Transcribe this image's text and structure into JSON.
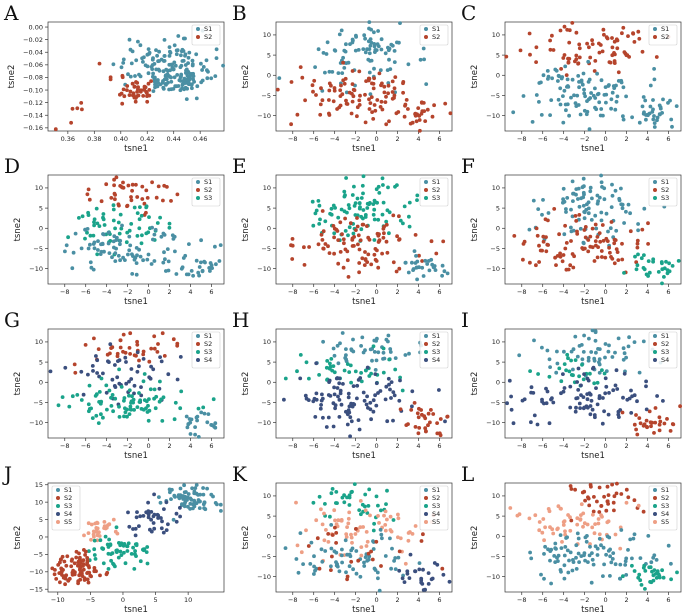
{
  "colors": {
    "S1": "#4a8fa3",
    "S2": "#b5442c",
    "S3": "#1aa38a",
    "S4": "#3b4f7e",
    "S5": "#ee9f85"
  },
  "chart_data": [
    {
      "letter": "A",
      "type": "scatter",
      "xlabel": "tsne1",
      "ylabel": "tsne2",
      "xlim": [
        0.345,
        0.478
      ],
      "ylim": [
        -0.165,
        0.008
      ],
      "xticks": [
        0.36,
        0.38,
        0.4,
        0.42,
        0.44,
        0.46
      ],
      "xtick_labels": [
        "0.36",
        "0.38",
        "0.40",
        "0.42",
        "0.44",
        "0.46"
      ],
      "yticks": [
        0.0,
        -0.02,
        -0.04,
        -0.06,
        -0.08,
        -0.1,
        -0.12,
        -0.14,
        -0.16
      ],
      "ytick_labels": [
        "0.00",
        "−0.02",
        "−0.04",
        "−0.06",
        "−0.08",
        "−0.10",
        "−0.12",
        "−0.14",
        "−0.16"
      ],
      "legend": [
        "S1",
        "S2"
      ],
      "clusters": [
        {
          "group": "S1",
          "n": 150,
          "cx": 0.433,
          "cy": -0.062,
          "sx": 0.017,
          "sy": 0.021
        },
        {
          "group": "S1",
          "n": 40,
          "cx": 0.447,
          "cy": -0.088,
          "sx": 0.007,
          "sy": 0.007
        },
        {
          "group": "S2",
          "n": 40,
          "cx": 0.415,
          "cy": -0.103,
          "sx": 0.008,
          "sy": 0.008
        },
        {
          "group": "S2",
          "n": 6,
          "cx": 0.362,
          "cy": -0.135,
          "sx": 0.01,
          "sy": 0.015
        },
        {
          "group": "S2",
          "n": 5,
          "cx": 0.395,
          "cy": -0.07,
          "sx": 0.01,
          "sy": 0.02
        }
      ]
    },
    {
      "letter": "B",
      "type": "scatter",
      "xlabel": "tsne1",
      "ylabel": "tsne2",
      "xlim": [
        -9.6,
        7.2
      ],
      "ylim": [
        -13.8,
        13.2
      ],
      "xticks": [
        -8,
        -6,
        -4,
        -2,
        0,
        2,
        4,
        6
      ],
      "xtick_labels": [
        "−8",
        "−6",
        "−4",
        "−2",
        "0",
        "2",
        "4",
        "6"
      ],
      "yticks": [
        10,
        5,
        0,
        -5,
        -10
      ],
      "ytick_labels": [
        "10",
        "5",
        "0",
        "−5",
        "−10"
      ],
      "legend": [
        "S1",
        "S2"
      ],
      "clusters": [
        {
          "group": "S1",
          "n": 95,
          "cx": -1.5,
          "cy": 5,
          "sx": 2.5,
          "sy": 4
        },
        {
          "group": "S2",
          "n": 100,
          "cx": -2,
          "cy": -4.5,
          "sx": 3.2,
          "sy": 3.5
        },
        {
          "group": "S2",
          "n": 30,
          "cx": 4.5,
          "cy": -9.5,
          "sx": 1.3,
          "sy": 1.8
        }
      ]
    },
    {
      "letter": "C",
      "type": "scatter",
      "xlabel": "tsne1",
      "ylabel": "tsne2",
      "xlim": [
        -9.6,
        7.2
      ],
      "ylim": [
        -13.8,
        13.2
      ],
      "xticks": [
        -8,
        -6,
        -4,
        -2,
        0,
        2,
        4,
        6
      ],
      "xtick_labels": [
        "−8",
        "−6",
        "−4",
        "−2",
        "0",
        "2",
        "4",
        "6"
      ],
      "yticks": [
        10,
        5,
        0,
        -5,
        -10
      ],
      "ytick_labels": [
        "10",
        "5",
        "0",
        "−5",
        "−10"
      ],
      "legend": [
        "S1",
        "S2"
      ],
      "clusters": [
        {
          "group": "S2",
          "n": 80,
          "cx": -1.5,
          "cy": 7,
          "sx": 2.8,
          "sy": 3.2
        },
        {
          "group": "S1",
          "n": 110,
          "cx": -2,
          "cy": -4,
          "sx": 3.2,
          "sy": 3.5
        },
        {
          "group": "S1",
          "n": 30,
          "cx": 4.5,
          "cy": -9.5,
          "sx": 1.3,
          "sy": 1.8
        }
      ]
    },
    {
      "letter": "D",
      "type": "scatter",
      "xlabel": "tsne1",
      "ylabel": "tsne2",
      "xlim": [
        -9.6,
        7.2
      ],
      "ylim": [
        -13.8,
        13.2
      ],
      "xticks": [
        -8,
        -6,
        -4,
        -2,
        0,
        2,
        4,
        6
      ],
      "xtick_labels": [
        "−8",
        "−6",
        "−4",
        "−2",
        "0",
        "2",
        "4",
        "6"
      ],
      "yticks": [
        10,
        5,
        0,
        -5,
        -10
      ],
      "ytick_labels": [
        "10",
        "5",
        "0",
        "−5",
        "−10"
      ],
      "legend": [
        "S1",
        "S2",
        "S3"
      ],
      "clusters": [
        {
          "group": "S2",
          "n": 45,
          "cx": -1,
          "cy": 9,
          "sx": 2.5,
          "sy": 2.5
        },
        {
          "group": "S3",
          "n": 60,
          "cx": -3,
          "cy": 1.5,
          "sx": 2.5,
          "sy": 3
        },
        {
          "group": "S1",
          "n": 90,
          "cx": -1.5,
          "cy": -5,
          "sx": 3.2,
          "sy": 3
        },
        {
          "group": "S1",
          "n": 25,
          "cx": 4.5,
          "cy": -10,
          "sx": 1.3,
          "sy": 1.6
        }
      ]
    },
    {
      "letter": "E",
      "type": "scatter",
      "xlabel": "tsne1",
      "ylabel": "tsne2",
      "xlim": [
        -9.6,
        7.2
      ],
      "ylim": [
        -13.8,
        13.2
      ],
      "xticks": [
        -8,
        -6,
        -4,
        -2,
        0,
        2,
        4,
        6
      ],
      "xtick_labels": [
        "−8",
        "−6",
        "−4",
        "−2",
        "0",
        "2",
        "4",
        "6"
      ],
      "yticks": [
        10,
        5,
        0,
        -5,
        -10
      ],
      "ytick_labels": [
        "10",
        "5",
        "0",
        "−5",
        "−10"
      ],
      "legend": [
        "S1",
        "S2",
        "S3"
      ],
      "clusters": [
        {
          "group": "S3",
          "n": 95,
          "cx": -1.5,
          "cy": 5,
          "sx": 2.5,
          "sy": 4
        },
        {
          "group": "S2",
          "n": 100,
          "cx": -2,
          "cy": -4.5,
          "sx": 3.2,
          "sy": 3.5
        },
        {
          "group": "S1",
          "n": 30,
          "cx": 4.5,
          "cy": -9.5,
          "sx": 1.3,
          "sy": 1.8
        }
      ]
    },
    {
      "letter": "F",
      "type": "scatter",
      "xlabel": "tsne1",
      "ylabel": "tsne2",
      "xlim": [
        -9.6,
        7.2
      ],
      "ylim": [
        -13.8,
        13.2
      ],
      "xticks": [
        -8,
        -6,
        -4,
        -2,
        0,
        2,
        4,
        6
      ],
      "xtick_labels": [
        "−8",
        "−6",
        "−4",
        "−2",
        "0",
        "2",
        "4",
        "6"
      ],
      "yticks": [
        10,
        5,
        0,
        -5,
        -10
      ],
      "ytick_labels": [
        "10",
        "5",
        "0",
        "−5",
        "−10"
      ],
      "legend": [
        "S1",
        "S2",
        "S3"
      ],
      "clusters": [
        {
          "group": "S1",
          "n": 95,
          "cx": -1.5,
          "cy": 5,
          "sx": 2.5,
          "sy": 4
        },
        {
          "group": "S2",
          "n": 100,
          "cx": -2,
          "cy": -4.5,
          "sx": 3.2,
          "sy": 3.5
        },
        {
          "group": "S3",
          "n": 30,
          "cx": 4.5,
          "cy": -9.5,
          "sx": 1.3,
          "sy": 1.8
        }
      ]
    },
    {
      "letter": "G",
      "type": "scatter",
      "xlabel": "tsne1",
      "ylabel": "tsne2",
      "xlim": [
        -9.6,
        7.2
      ],
      "ylim": [
        -13.8,
        13.2
      ],
      "xticks": [
        -8,
        -6,
        -4,
        -2,
        0,
        2,
        4,
        6
      ],
      "xtick_labels": [
        "−8",
        "−6",
        "−4",
        "−2",
        "0",
        "2",
        "4",
        "6"
      ],
      "yticks": [
        10,
        5,
        0,
        -5,
        -10
      ],
      "ytick_labels": [
        "10",
        "5",
        "0",
        "−5",
        "−10"
      ],
      "legend": [
        "S1",
        "S2",
        "S3",
        "S4"
      ],
      "clusters": [
        {
          "group": "S2",
          "n": 45,
          "cx": -1,
          "cy": 9,
          "sx": 2.5,
          "sy": 2.5
        },
        {
          "group": "S4",
          "n": 55,
          "cx": -2.5,
          "cy": 1.5,
          "sx": 2.8,
          "sy": 3
        },
        {
          "group": "S3",
          "n": 90,
          "cx": -1.5,
          "cy": -5,
          "sx": 3.2,
          "sy": 3
        },
        {
          "group": "S1",
          "n": 25,
          "cx": 4.5,
          "cy": -10,
          "sx": 1.3,
          "sy": 1.6
        }
      ]
    },
    {
      "letter": "H",
      "type": "scatter",
      "xlabel": "tsne1",
      "ylabel": "tsne2",
      "xlim": [
        -9.6,
        7.2
      ],
      "ylim": [
        -13.8,
        13.2
      ],
      "xticks": [
        -8,
        -6,
        -4,
        -2,
        0,
        2,
        4,
        6
      ],
      "xtick_labels": [
        "−8",
        "−6",
        "−4",
        "−2",
        "0",
        "2",
        "4",
        "6"
      ],
      "yticks": [
        10,
        5,
        0,
        -5,
        -10
      ],
      "ytick_labels": [
        "10",
        "5",
        "0",
        "−5",
        "−10"
      ],
      "legend": [
        "S1",
        "S2",
        "S3",
        "S4"
      ],
      "clusters": [
        {
          "group": "S1",
          "n": 50,
          "cx": -1,
          "cy": 8,
          "sx": 2.5,
          "sy": 2.8
        },
        {
          "group": "S3",
          "n": 40,
          "cx": -2.5,
          "cy": 3,
          "sx": 2.5,
          "sy": 2
        },
        {
          "group": "S4",
          "n": 100,
          "cx": -2,
          "cy": -4.5,
          "sx": 3.2,
          "sy": 3.5
        },
        {
          "group": "S2",
          "n": 30,
          "cx": 4.5,
          "cy": -9.5,
          "sx": 1.3,
          "sy": 1.8
        }
      ]
    },
    {
      "letter": "I",
      "type": "scatter",
      "xlabel": "tsne1",
      "ylabel": "tsne2",
      "xlim": [
        -9.6,
        7.2
      ],
      "ylim": [
        -13.8,
        13.2
      ],
      "xticks": [
        -8,
        -6,
        -4,
        -2,
        0,
        2,
        4,
        6
      ],
      "xtick_labels": [
        "−8",
        "−6",
        "−4",
        "−2",
        "0",
        "2",
        "4",
        "6"
      ],
      "yticks": [
        10,
        5,
        0,
        -5,
        -10
      ],
      "ytick_labels": [
        "10",
        "5",
        "0",
        "−5",
        "−10"
      ],
      "legend": [
        "S1",
        "S2",
        "S3",
        "S4"
      ],
      "clusters": [
        {
          "group": "S1",
          "n": 60,
          "cx": -1,
          "cy": 7.5,
          "sx": 2.5,
          "sy": 3
        },
        {
          "group": "S3",
          "n": 25,
          "cx": -3,
          "cy": 2,
          "sx": 2,
          "sy": 2
        },
        {
          "group": "S4",
          "n": 95,
          "cx": -2,
          "cy": -4.5,
          "sx": 3.2,
          "sy": 3.5
        },
        {
          "group": "S2",
          "n": 30,
          "cx": 4.5,
          "cy": -9.5,
          "sx": 1.3,
          "sy": 1.8
        }
      ]
    },
    {
      "letter": "J",
      "type": "scatter",
      "xlabel": "tsne1",
      "ylabel": "tsne2",
      "xlim": [
        -11.5,
        15.5
      ],
      "ylim": [
        -15.8,
        15.5
      ],
      "xticks": [
        -10,
        -5,
        0,
        5,
        10
      ],
      "xtick_labels": [
        "−10",
        "−5",
        "0",
        "5",
        "10"
      ],
      "yticks": [
        15,
        10,
        5,
        0,
        -5,
        -10,
        -15
      ],
      "ytick_labels": [
        "15",
        "10",
        "5",
        "0",
        "−5",
        "−10",
        "−15"
      ],
      "legend": [
        "S1",
        "S2",
        "S3",
        "S4",
        "S5"
      ],
      "clusters": [
        {
          "group": "S1",
          "n": 70,
          "cx": 10.5,
          "cy": 11,
          "sx": 2,
          "sy": 1.8
        },
        {
          "group": "S4",
          "n": 40,
          "cx": 5,
          "cy": 5,
          "sx": 2,
          "sy": 2.5
        },
        {
          "group": "S5",
          "n": 30,
          "cx": -3.5,
          "cy": 2.5,
          "sx": 1.4,
          "sy": 1.5
        },
        {
          "group": "S3",
          "n": 60,
          "cx": -1,
          "cy": -4,
          "sx": 2.8,
          "sy": 2.2
        },
        {
          "group": "S2",
          "n": 90,
          "cx": -7,
          "cy": -9,
          "sx": 2,
          "sy": 2.5
        }
      ]
    },
    {
      "letter": "K",
      "type": "scatter",
      "xlabel": "tsne1",
      "ylabel": "tsne2",
      "xlim": [
        -9.6,
        7.2
      ],
      "ylim": [
        -13.8,
        13.2
      ],
      "xticks": [
        -8,
        -6,
        -4,
        -2,
        0,
        2,
        4,
        6
      ],
      "xtick_labels": [
        "−8",
        "−6",
        "−4",
        "−2",
        "0",
        "2",
        "4",
        "6"
      ],
      "yticks": [
        10,
        5,
        0,
        -5,
        -10
      ],
      "ytick_labels": [
        "10",
        "5",
        "0",
        "−5",
        "−10"
      ],
      "legend": [
        "S1",
        "S2",
        "S3",
        "S4",
        "S5"
      ],
      "clusters": [
        {
          "group": "S3",
          "n": 40,
          "cx": -2,
          "cy": 9,
          "sx": 2.2,
          "sy": 2.5
        },
        {
          "group": "S5",
          "n": 70,
          "cx": -1.5,
          "cy": 2,
          "sx": 3,
          "sy": 3.5
        },
        {
          "group": "S1",
          "n": 70,
          "cx": -3,
          "cy": -6,
          "sx": 2.8,
          "sy": 3
        },
        {
          "group": "S4",
          "n": 25,
          "cx": 4.5,
          "cy": -9.5,
          "sx": 1.3,
          "sy": 1.8
        },
        {
          "group": "S2",
          "n": 25,
          "cx": -0.5,
          "cy": -4,
          "sx": 3,
          "sy": 4
        }
      ]
    },
    {
      "letter": "L",
      "type": "scatter",
      "xlabel": "tsne1",
      "ylabel": "tsne2",
      "xlim": [
        -9.6,
        7.2
      ],
      "ylim": [
        -13.8,
        13.2
      ],
      "xticks": [
        -8,
        -6,
        -4,
        -2,
        0,
        2,
        4,
        6
      ],
      "xtick_labels": [
        "−8",
        "−6",
        "−4",
        "−2",
        "0",
        "2",
        "4",
        "6"
      ],
      "yticks": [
        10,
        5,
        0,
        -5,
        -10
      ],
      "ytick_labels": [
        "10",
        "5",
        "0",
        "−5",
        "−10"
      ],
      "legend": [
        "S1",
        "S2",
        "S3",
        "S4",
        "S5"
      ],
      "clusters": [
        {
          "group": "S2",
          "n": 40,
          "cx": -1,
          "cy": 9.5,
          "sx": 2.2,
          "sy": 2.2
        },
        {
          "group": "S5",
          "n": 60,
          "cx": -3,
          "cy": 3,
          "sx": 2.8,
          "sy": 2.8
        },
        {
          "group": "S1",
          "n": 100,
          "cx": -2,
          "cy": -5,
          "sx": 3.2,
          "sy": 3.2
        },
        {
          "group": "S3",
          "n": 30,
          "cx": 4.5,
          "cy": -9.5,
          "sx": 1.3,
          "sy": 1.8
        }
      ]
    }
  ]
}
